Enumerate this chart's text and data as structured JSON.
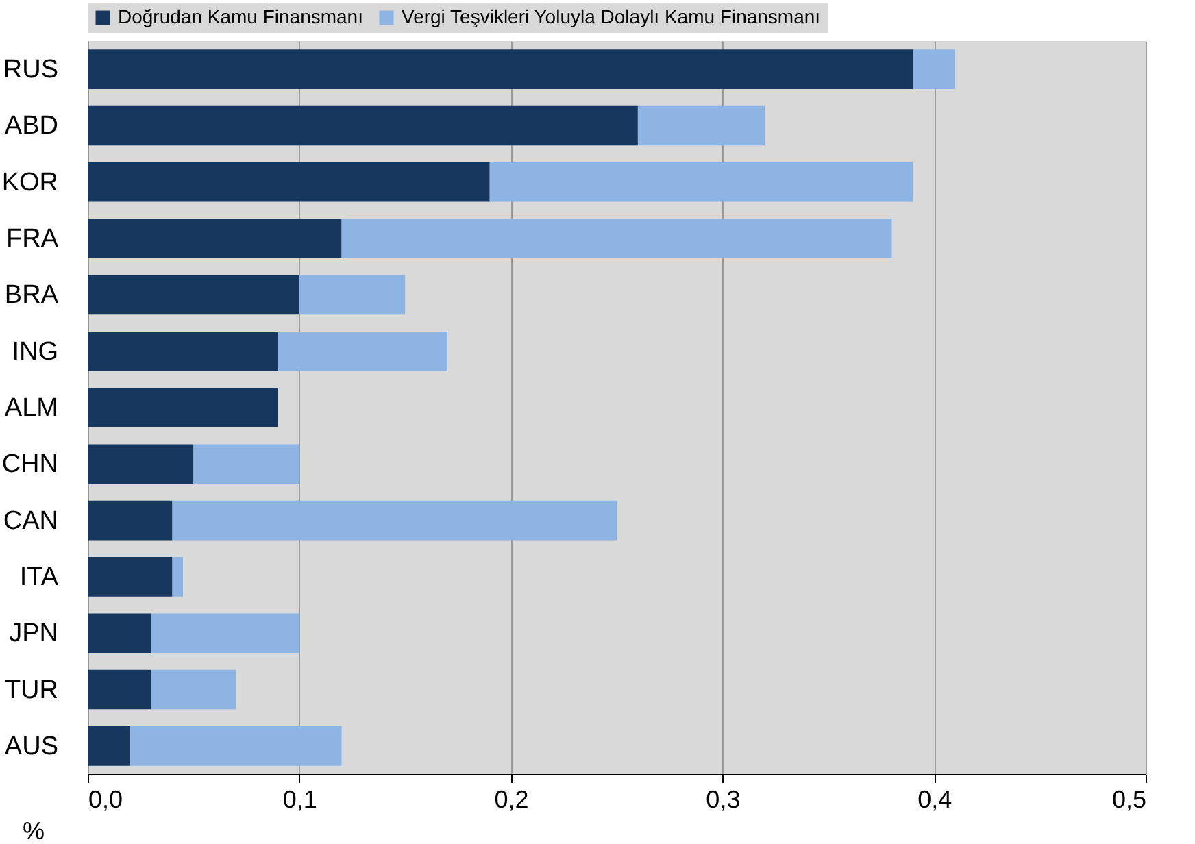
{
  "chart_data": {
    "type": "bar",
    "orientation": "horizontal",
    "stacked": true,
    "categories": [
      "RUS",
      "ABD",
      "KOR",
      "FRA",
      "BRA",
      "ING",
      "ALM",
      "CHN",
      "CAN",
      "ITA",
      "JPN",
      "TUR",
      "AUS"
    ],
    "series": [
      {
        "name": "Doğrudan Kamu Finansmanı",
        "color": "#17375e",
        "values": [
          0.39,
          0.26,
          0.19,
          0.12,
          0.1,
          0.09,
          0.09,
          0.05,
          0.04,
          0.04,
          0.03,
          0.03,
          0.02
        ]
      },
      {
        "name": "Vergi Teşvikleri Yoluyla Dolaylı Kamu Finansmanı",
        "color": "#8db4e2",
        "values": [
          0.02,
          0.06,
          0.2,
          0.26,
          0.05,
          0.08,
          0,
          0.05,
          0.21,
          0.005,
          0.07,
          0.04,
          0.1
        ]
      }
    ],
    "xlabel": "%",
    "xlim": [
      0,
      0.5
    ],
    "xticks": [
      {
        "value": 0,
        "label": "0,0"
      },
      {
        "value": 0.1,
        "label": "0,1"
      },
      {
        "value": 0.2,
        "label": "0,2"
      },
      {
        "value": 0.3,
        "label": "0,3"
      },
      {
        "value": 0.4,
        "label": "0,4"
      },
      {
        "value": 0.5,
        "label": "0,5"
      }
    ],
    "grid": "x",
    "legend": "top"
  }
}
